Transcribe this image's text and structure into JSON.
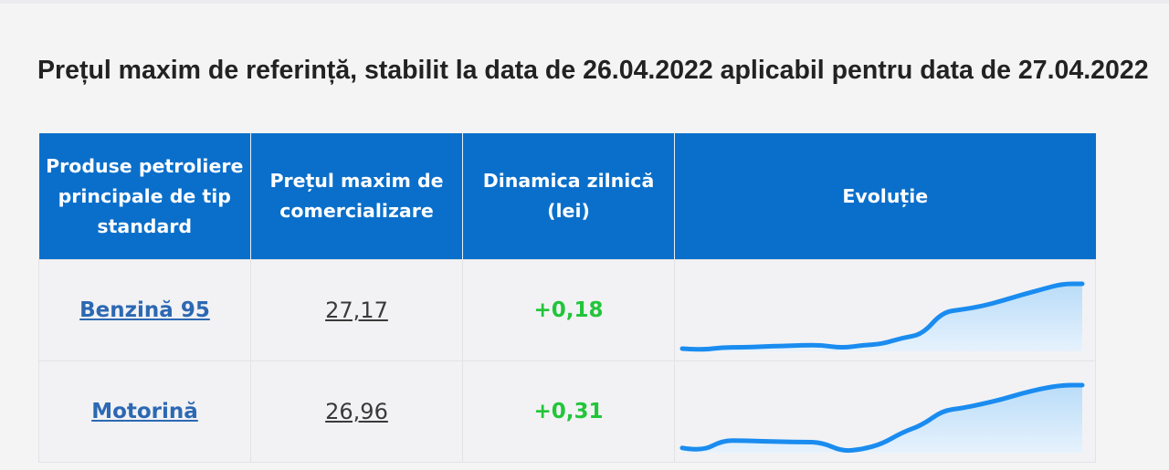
{
  "page": {
    "title": "Prețul maxim de referință, stabilit la data de 26.04.2022 aplicabil pentru data de 27.04.2022"
  },
  "table": {
    "headers": [
      "Produse petroliere principale de tip standard",
      "Prețul maxim de comercializare",
      "Dinamica zilnică (lei)",
      "Evoluție"
    ],
    "rows": [
      {
        "product": "Benzină 95",
        "price": "27,17",
        "delta": "+0,18"
      },
      {
        "product": "Motorină",
        "price": "26,96",
        "delta": "+0,31"
      }
    ]
  },
  "colors": {
    "header_bg": "#0a6fca",
    "accent_link": "#2c68b3",
    "positive": "#22c53a",
    "spark_line": "#1a8cf0",
    "spark_fill": "#b9dcf8"
  },
  "chart_data": [
    {
      "type": "area",
      "series": [
        {
          "values": [
            0.04,
            0.02,
            0.06,
            0.06,
            0.07,
            0.08,
            0.09,
            0.09,
            0.05,
            0.09,
            0.11,
            0.2,
            0.25,
            0.58,
            0.62,
            0.67,
            0.75,
            0.84,
            0.92,
            1.0,
            1.0
          ]
        }
      ]
    },
    {
      "type": "area",
      "series": [
        {
          "values": [
            0.07,
            0.02,
            0.18,
            0.18,
            0.17,
            0.16,
            0.16,
            0.15,
            0.02,
            0.05,
            0.13,
            0.3,
            0.41,
            0.62,
            0.66,
            0.72,
            0.79,
            0.88,
            0.95,
            1.0,
            1.0
          ]
        }
      ]
    }
  ]
}
